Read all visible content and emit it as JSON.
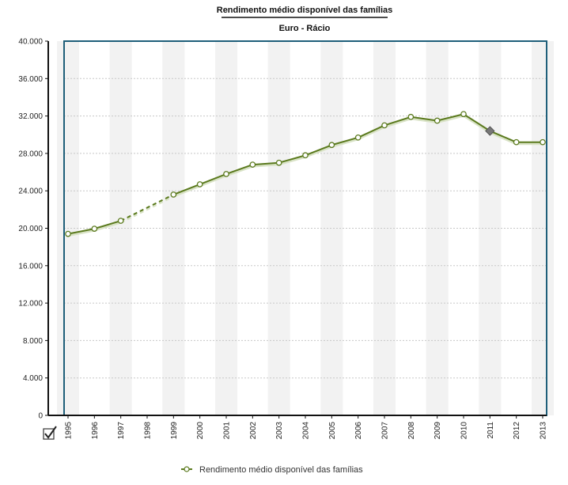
{
  "chart_data": {
    "type": "line",
    "title": "Rendimento médio disponível das famílias",
    "subtitle": "Euro - Rácio",
    "categories": [
      "1995",
      "1996",
      "1997",
      "1998",
      "1999",
      "2000",
      "2001",
      "2002",
      "2003",
      "2004",
      "2005",
      "2006",
      "2007",
      "2008",
      "2009",
      "2010",
      "2011",
      "2012",
      "2013"
    ],
    "series": [
      {
        "name": "Rendimento médio disponível das famílias",
        "values": [
          19400,
          19950,
          20800,
          null,
          23600,
          24700,
          25800,
          26800,
          27000,
          27800,
          28900,
          29700,
          31000,
          31900,
          31500,
          32200,
          30400,
          29200,
          29200
        ],
        "bridge_gaps": true,
        "highlight_index": 16,
        "color": "#5b7a1e"
      }
    ],
    "yticks": [
      "0",
      "4.000",
      "8.000",
      "12.000",
      "16.000",
      "20.000",
      "24.000",
      "28.000",
      "32.000",
      "36.000",
      "40.000"
    ],
    "ylim": [
      0,
      40000
    ],
    "grid": true,
    "legend": "bottom",
    "colors": {
      "line": "#5b7a1e",
      "plot_border": "#1f5f7a",
      "band": "#f2f2f2",
      "grid": "#c8c8c8",
      "marker_fill": "#ffffff",
      "highlight": "#777777"
    }
  },
  "ui": {
    "checkbox_icon": "checkmark-box-icon"
  }
}
